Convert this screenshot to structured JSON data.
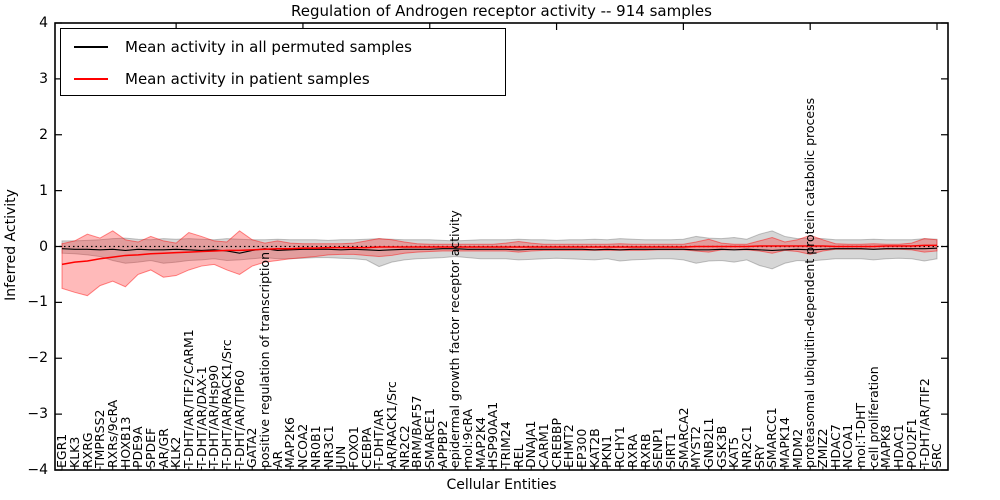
{
  "figure": {
    "title": "Regulation of Androgen receptor activity -- 914 samples",
    "xlabel": "Cellular Entities",
    "ylabel": "Inferred Activity",
    "legend": [
      {
        "label": "Mean activity in all permuted samples",
        "color": "#000000"
      },
      {
        "label": "Mean activity in patient samples",
        "color": "#ff0000"
      }
    ]
  },
  "chart_data": {
    "type": "line",
    "title": "Regulation of Androgen receptor activity -- 914 samples",
    "xlabel": "Cellular Entities",
    "ylabel": "Inferred Activity",
    "ylim": [
      -4,
      4
    ],
    "yticks": [
      4,
      3,
      2,
      1,
      0,
      -1,
      -2,
      -3,
      -4
    ],
    "x_major_tick_indices": [
      9,
      19,
      29,
      39,
      49,
      59,
      69
    ],
    "zero_line": {
      "style": "dotted",
      "color": "#000000",
      "y": 0
    },
    "legend_position": "upper left",
    "grid": false,
    "categories": [
      "EGR1",
      "KLK3",
      "RXRG",
      "TMPRSS2",
      "RXRs/9cRA",
      "HOXB13",
      "PDE9A",
      "SPDEF",
      "AR/GR",
      "KLK2",
      "T-DHT/AR/TIF2/CARM1",
      "T-DHT/AR/DAX-1",
      "T-DHT/AR/Hsp90",
      "T-DHT/AR/RACK1/Src",
      "T-DHT/AR/TIP60",
      "GATA2",
      "positive regulation of transcription",
      "AR",
      "MAP2K6",
      "NCOA2",
      "NR0B1",
      "NR3C1",
      "JUN",
      "FOXO1",
      "CEBPA",
      "T-DHT/AR",
      "AR/RACK1/Src",
      "NR2C2",
      "BRM/BAF57",
      "SMARCE1",
      "APPBP2",
      "epidermal growth factor receptor activity",
      "mol:9cRA",
      "MAP2K4",
      "HSP90AA1",
      "TRIM24",
      "REL",
      "DNAJA1",
      "CARM1",
      "CREBBP",
      "EHMT2",
      "EP300",
      "KAT2B",
      "PKN1",
      "RCHY1",
      "RXRA",
      "RXRB",
      "SENP1",
      "SIRT1",
      "SMARCA2",
      "MYST2",
      "GNB2L1",
      "GSK3B",
      "KAT5",
      "NR2C1",
      "SRY",
      "SMARCC1",
      "MAPK14",
      "MDM2",
      "proteasomal ubiquitin-dependent protein catabolic process",
      "ZMIZ2",
      "HDAC7",
      "NCOA1",
      "mol:T-DHT",
      "cell proliferation",
      "MAPK8",
      "HDAC1",
      "POU2F1",
      "T-DHT/AR/TIF2",
      "SRC"
    ],
    "series": [
      {
        "name": "Mean activity in all permuted samples",
        "type": "line",
        "color": "#000000",
        "values": [
          -0.04,
          -0.05,
          -0.05,
          -0.06,
          -0.05,
          -0.07,
          -0.05,
          -0.06,
          -0.06,
          -0.05,
          -0.06,
          -0.07,
          -0.06,
          -0.08,
          -0.12,
          -0.07,
          -0.04,
          -0.07,
          -0.06,
          -0.05,
          -0.05,
          -0.05,
          -0.06,
          -0.05,
          -0.06,
          -0.07,
          -0.06,
          -0.05,
          -0.05,
          -0.05,
          -0.04,
          -0.04,
          -0.05,
          -0.05,
          -0.05,
          -0.05,
          -0.06,
          -0.05,
          -0.05,
          -0.05,
          -0.05,
          -0.05,
          -0.06,
          -0.05,
          -0.06,
          -0.05,
          -0.05,
          -0.05,
          -0.05,
          -0.05,
          -0.06,
          -0.06,
          -0.05,
          -0.06,
          -0.05,
          -0.06,
          -0.07,
          -0.06,
          -0.05,
          -0.06,
          -0.05,
          -0.04,
          -0.04,
          -0.04,
          -0.05,
          -0.04,
          -0.04,
          -0.04,
          -0.04,
          -0.03
        ]
      },
      {
        "name": "Mean activity in patient samples",
        "type": "line",
        "color": "#ff0000",
        "values": [
          -0.32,
          -0.28,
          -0.26,
          -0.22,
          -0.19,
          -0.16,
          -0.15,
          -0.13,
          -0.12,
          -0.11,
          -0.1,
          -0.09,
          -0.08,
          -0.07,
          -0.07,
          -0.06,
          -0.05,
          -0.04,
          -0.04,
          -0.03,
          -0.03,
          -0.02,
          -0.02,
          -0.02,
          -0.02,
          -0.01,
          -0.01,
          -0.01,
          -0.01,
          -0.01,
          -0.01,
          -0.01,
          -0.01,
          -0.01,
          -0.01,
          -0.01,
          -0.01,
          -0.01,
          -0.01,
          -0.01,
          -0.01,
          -0.01,
          -0.01,
          -0.01,
          -0.01,
          -0.01,
          -0.01,
          -0.01,
          -0.01,
          -0.01,
          0.0,
          0.0,
          0.0,
          0.0,
          0.0,
          0.01,
          0.01,
          0.01,
          0.01,
          0.01,
          0.01,
          0.0,
          0.0,
          0.0,
          0.0,
          0.01,
          0.01,
          0.01,
          0.02,
          0.02
        ]
      },
      {
        "name": "Permuted samples activity band",
        "type": "band",
        "fill": "rgba(128,128,128,0.32)",
        "edge": "rgba(90,90,90,0.35)",
        "upper": [
          0.1,
          0.1,
          0.11,
          0.12,
          0.14,
          0.15,
          0.13,
          0.12,
          0.14,
          0.13,
          0.14,
          0.13,
          0.12,
          0.14,
          0.13,
          0.12,
          0.12,
          0.13,
          0.12,
          0.12,
          0.12,
          0.11,
          0.12,
          0.12,
          0.13,
          0.14,
          0.13,
          0.12,
          0.12,
          0.12,
          0.11,
          0.1,
          0.11,
          0.12,
          0.12,
          0.12,
          0.13,
          0.12,
          0.12,
          0.11,
          0.12,
          0.12,
          0.13,
          0.12,
          0.14,
          0.13,
          0.12,
          0.12,
          0.12,
          0.13,
          0.18,
          0.15,
          0.14,
          0.16,
          0.13,
          0.22,
          0.28,
          0.18,
          0.14,
          0.15,
          0.14,
          0.12,
          0.12,
          0.12,
          0.13,
          0.12,
          0.12,
          0.12,
          0.14,
          0.13
        ],
        "lower": [
          -0.12,
          -0.13,
          -0.15,
          -0.18,
          -0.25,
          -0.3,
          -0.28,
          -0.25,
          -0.3,
          -0.28,
          -0.25,
          -0.24,
          -0.22,
          -0.25,
          -0.24,
          -0.22,
          -0.2,
          -0.22,
          -0.22,
          -0.21,
          -0.2,
          -0.2,
          -0.21,
          -0.22,
          -0.24,
          -0.36,
          -0.28,
          -0.24,
          -0.22,
          -0.21,
          -0.2,
          -0.18,
          -0.2,
          -0.22,
          -0.22,
          -0.22,
          -0.24,
          -0.23,
          -0.22,
          -0.21,
          -0.22,
          -0.23,
          -0.24,
          -0.22,
          -0.26,
          -0.24,
          -0.23,
          -0.22,
          -0.22,
          -0.24,
          -0.3,
          -0.26,
          -0.25,
          -0.28,
          -0.24,
          -0.34,
          -0.4,
          -0.3,
          -0.25,
          -0.26,
          -0.24,
          -0.22,
          -0.22,
          -0.22,
          -0.24,
          -0.22,
          -0.21,
          -0.22,
          -0.26,
          -0.22
        ]
      },
      {
        "name": "Patient samples activity band",
        "type": "band",
        "fill": "rgba(255,25,25,0.30)",
        "edge": "rgba(255,0,0,0.45)",
        "upper": [
          0.05,
          0.1,
          0.22,
          0.15,
          0.28,
          0.12,
          0.08,
          0.18,
          0.1,
          0.06,
          0.25,
          0.18,
          0.1,
          0.08,
          0.28,
          0.12,
          0.06,
          0.1,
          0.06,
          0.05,
          0.05,
          0.05,
          0.05,
          0.06,
          0.1,
          0.14,
          0.12,
          0.08,
          0.05,
          0.04,
          0.04,
          0.04,
          0.04,
          0.04,
          0.04,
          0.06,
          0.09,
          0.06,
          0.04,
          0.04,
          0.04,
          0.04,
          0.04,
          0.04,
          0.05,
          0.04,
          0.04,
          0.04,
          0.04,
          0.04,
          0.08,
          0.13,
          0.06,
          0.04,
          0.04,
          0.1,
          0.16,
          0.08,
          0.12,
          0.2,
          0.12,
          0.05,
          0.04,
          0.04,
          0.05,
          0.04,
          0.04,
          0.06,
          0.14,
          0.12
        ],
        "lower": [
          -0.75,
          -0.82,
          -0.88,
          -0.7,
          -0.62,
          -0.72,
          -0.5,
          -0.42,
          -0.55,
          -0.52,
          -0.42,
          -0.35,
          -0.32,
          -0.42,
          -0.5,
          -0.35,
          -0.28,
          -0.25,
          -0.22,
          -0.2,
          -0.18,
          -0.15,
          -0.14,
          -0.14,
          -0.16,
          -0.18,
          -0.16,
          -0.12,
          -0.1,
          -0.09,
          -0.08,
          -0.08,
          -0.08,
          -0.08,
          -0.08,
          -0.08,
          -0.1,
          -0.08,
          -0.07,
          -0.07,
          -0.07,
          -0.07,
          -0.07,
          -0.07,
          -0.07,
          -0.07,
          -0.07,
          -0.06,
          -0.06,
          -0.06,
          -0.08,
          -0.1,
          -0.06,
          -0.06,
          -0.06,
          -0.08,
          -0.12,
          -0.07,
          -0.09,
          -0.14,
          -0.08,
          -0.05,
          -0.05,
          -0.05,
          -0.05,
          -0.05,
          -0.05,
          -0.06,
          -0.1,
          -0.08
        ]
      }
    ]
  }
}
